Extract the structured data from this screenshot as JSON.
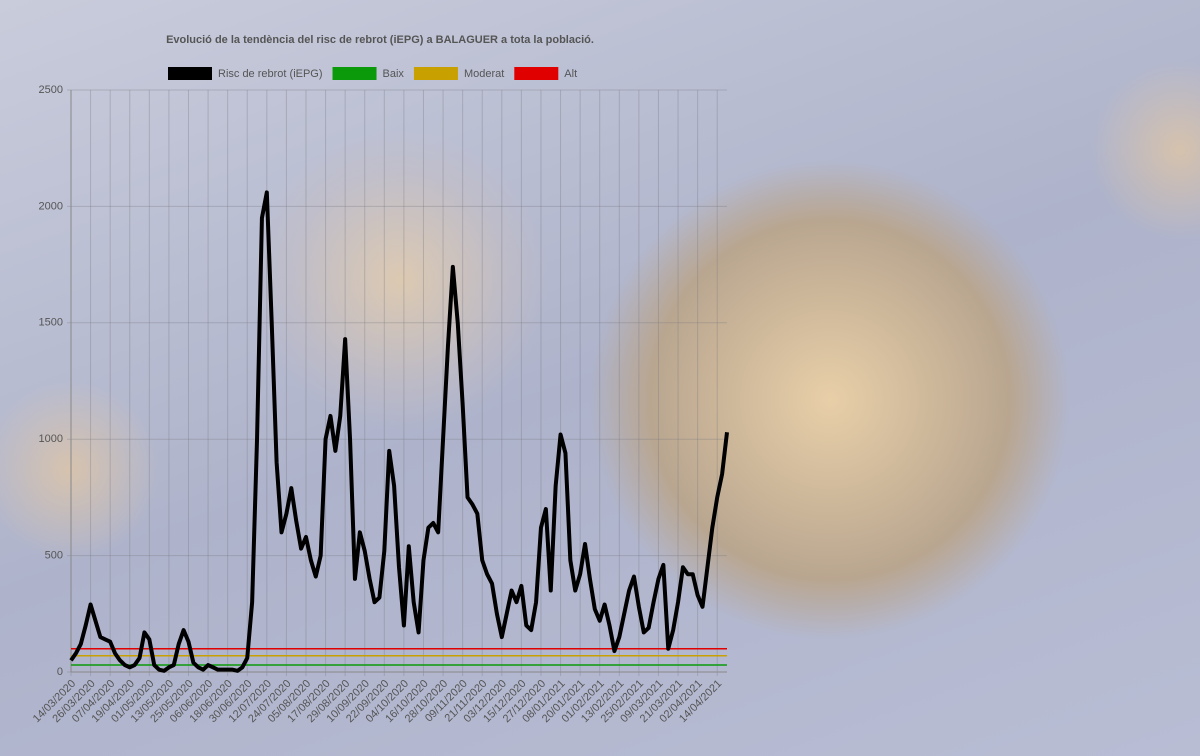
{
  "chart_data": {
    "type": "line",
    "title": "Evolució de la tendència del risc de rebrot (iEPG) a BALAGUER a tota la població.",
    "categories": [
      "14/03/2020",
      null,
      null,
      null,
      "26/03/2020",
      null,
      null,
      null,
      "07/04/2020",
      null,
      null,
      null,
      "19/04/2020",
      null,
      null,
      null,
      "01/05/2020",
      null,
      null,
      null,
      "13/05/2020",
      null,
      null,
      null,
      "25/05/2020",
      null,
      null,
      null,
      "06/06/2020",
      null,
      null,
      null,
      "18/06/2020",
      null,
      null,
      null,
      "30/06/2020",
      null,
      null,
      null,
      "12/07/2020",
      null,
      null,
      null,
      "24/07/2020",
      null,
      null,
      null,
      "05/08/2020",
      null,
      null,
      null,
      "17/08/2020",
      null,
      null,
      null,
      "29/08/2020",
      null,
      null,
      null,
      "10/09/2020",
      null,
      null,
      null,
      "22/09/2020",
      null,
      null,
      null,
      "04/10/2020",
      null,
      null,
      null,
      "16/10/2020",
      null,
      null,
      null,
      "28/10/2020",
      null,
      null,
      null,
      "09/11/2020",
      null,
      null,
      null,
      "21/11/2020",
      null,
      null,
      null,
      "03/12/2020",
      null,
      null,
      null,
      "15/12/2020",
      null,
      null,
      null,
      "27/12/2020",
      null,
      null,
      null,
      "08/01/2021",
      null,
      null,
      null,
      "20/01/2021",
      null,
      null,
      null,
      "01/02/2021",
      null,
      null,
      null,
      "13/02/2021",
      null,
      null,
      null,
      "25/02/2021",
      null,
      null,
      null,
      "09/03/2021",
      null,
      null,
      null,
      "21/03/2021",
      null,
      null,
      null,
      "02/04/2021",
      null,
      null,
      null,
      "14/04/2021",
      null,
      null
    ],
    "series": [
      {
        "name": "Risc de rebrot (iEPG)",
        "color": "#000000",
        "values": [
          50,
          80,
          120,
          200,
          290,
          220,
          150,
          140,
          130,
          80,
          50,
          30,
          20,
          30,
          60,
          170,
          140,
          30,
          10,
          5,
          20,
          30,
          120,
          180,
          130,
          40,
          20,
          10,
          30,
          20,
          10,
          10,
          10,
          10,
          5,
          20,
          60,
          300,
          1000,
          1950,
          2060,
          1500,
          900,
          600,
          680,
          790,
          650,
          530,
          580,
          480,
          410,
          500,
          1000,
          1100,
          950,
          1100,
          1430,
          1000,
          400,
          600,
          520,
          400,
          300,
          320,
          520,
          950,
          800,
          450,
          200,
          540,
          300,
          170,
          480,
          620,
          640,
          600,
          1000,
          1400,
          1740,
          1500,
          1150,
          750,
          720,
          680,
          480,
          420,
          380,
          250,
          150,
          250,
          350,
          300,
          370,
          200,
          180,
          300,
          620,
          700,
          350,
          800,
          1020,
          940,
          480,
          350,
          420,
          550,
          400,
          270,
          220,
          290,
          200,
          90,
          150,
          250,
          350,
          410,
          280,
          170,
          190,
          300,
          400,
          460,
          100,
          180,
          300,
          450,
          420,
          420,
          330,
          280,
          450,
          620,
          750,
          850,
          1030
        ]
      }
    ],
    "thresholds": [
      {
        "name": "Baix",
        "color": "#0a9a0a",
        "value": 30
      },
      {
        "name": "Moderat",
        "color": "#c8a000",
        "value": 70
      },
      {
        "name": "Alt",
        "color": "#e00000",
        "value": 100
      }
    ],
    "ylim": [
      0,
      2500
    ],
    "yticks": [
      0,
      500,
      1000,
      1500,
      2000,
      2500
    ],
    "grid": true
  }
}
